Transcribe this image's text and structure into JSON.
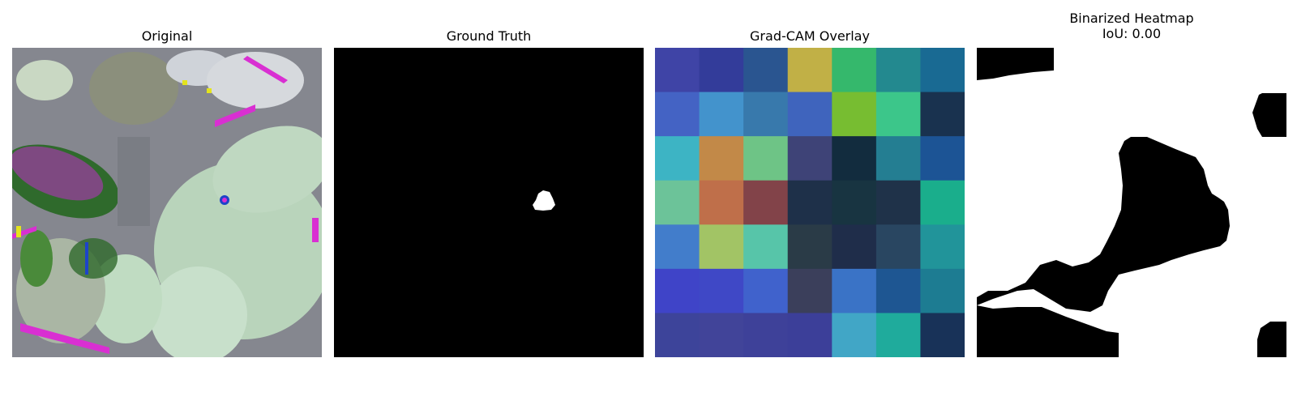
{
  "panels": {
    "original": {
      "title": "Original"
    },
    "ground_truth": {
      "title": "Ground Truth"
    },
    "gradcam": {
      "title": "Grad-CAM Overlay",
      "grid": [
        [
          "#3f44a6",
          "#333c9a",
          "#2a5590",
          "#c1b046",
          "#35b86c",
          "#23898f",
          "#196a93"
        ],
        [
          "#4463c4",
          "#4393cc",
          "#3879ac",
          "#3f64bd",
          "#77bd31",
          "#3cc68a",
          "#19324f"
        ],
        [
          "#3db4c4",
          "#c28948",
          "#6ec486",
          "#3e4377",
          "#122c3e",
          "#247e92",
          "#1c5495"
        ],
        [
          "#6cc399",
          "#bf6f4a",
          "#824349",
          "#1e3049",
          "#183441",
          "#1f3249",
          "#1aae8c"
        ],
        [
          "#427dcb",
          "#a2c465",
          "#57c5a9",
          "#2a3b47",
          "#1f2d4a",
          "#294661",
          "#21949a"
        ],
        [
          "#3f44c8",
          "#3f48c6",
          "#4062cc",
          "#3b3f5b",
          "#3a73c6",
          "#1e5692",
          "#1d7c92"
        ],
        [
          "#3d449a",
          "#414499",
          "#3e4199",
          "#3c3f99",
          "#41a6c6",
          "#1fab9c",
          "#183258"
        ]
      ]
    },
    "binarized": {
      "title": "Binarized Heatmap",
      "subtitle": "IoU: 0.00"
    }
  }
}
